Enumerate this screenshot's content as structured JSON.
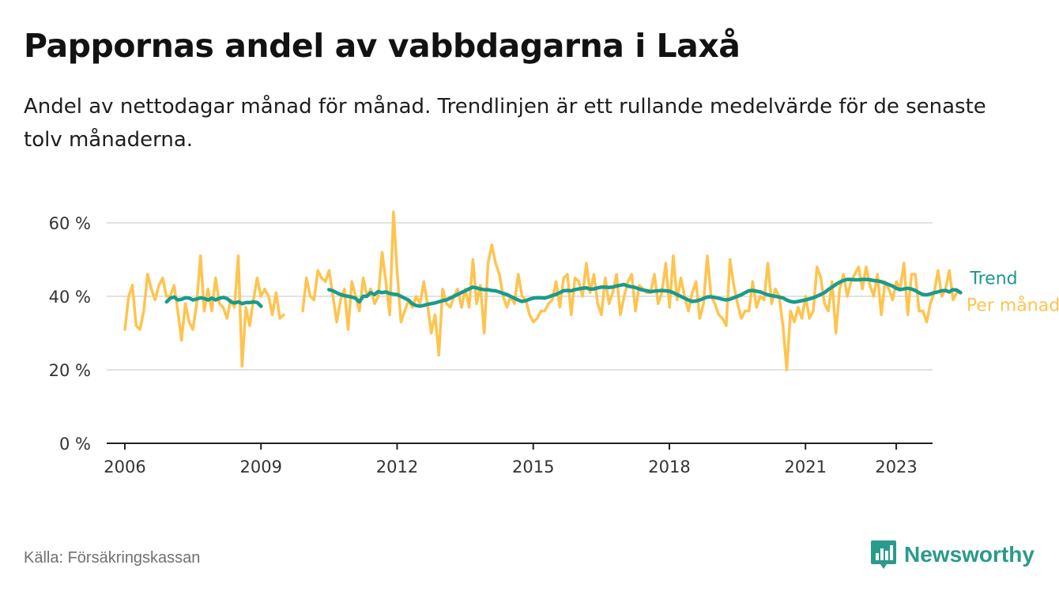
{
  "title": "Pappornas andel av vabbdagarna i Laxå",
  "subtitle": "Andel av nettodagar månad för månad. Trendlinjen är ett rullande medelvärde för de senaste tolv månaderna.",
  "source": "Källa: Försäkringskassan",
  "brand": {
    "name": "Newsworthy",
    "icon": "newsworthy-logo-icon"
  },
  "colors": {
    "monthly": "#fec44f",
    "trend": "#1a9a8c",
    "grid": "#d9d9d9",
    "axis": "#222222"
  },
  "chart_data": {
    "type": "line",
    "x_unit": "year",
    "ylim": [
      0,
      60
    ],
    "xlim": [
      2005.6,
      2023.8
    ],
    "y_ticks": [
      0,
      20,
      40,
      60
    ],
    "y_tick_labels": [
      "0 %",
      "20 %",
      "40 %",
      "60 %"
    ],
    "x_ticks": [
      2006,
      2009,
      2012,
      2015,
      2018,
      2021,
      2023
    ],
    "x_tick_labels": [
      "2006",
      "2009",
      "2012",
      "2015",
      "2018",
      "2021",
      "2023"
    ],
    "grid": true,
    "legend": "direct labels at line ends (right)",
    "series": [
      {
        "name": "Per månad",
        "color": "#fec44f",
        "segments": [
          {
            "x_start": 2006.0,
            "y": [
              31,
              40,
              43,
              32,
              31,
              36,
              46,
              42,
              39,
              43,
              45,
              40,
              40,
              43,
              36,
              28,
              38,
              33,
              31,
              38,
              51,
              36,
              42,
              36,
              45,
              38,
              37,
              34,
              39,
              37,
              51,
              21,
              37,
              32,
              39,
              45,
              40,
              42,
              40,
              35,
              41,
              34,
              35
            ]
          },
          {
            "x_start": 2009.92,
            "y": [
              36,
              45,
              40,
              39,
              47,
              45,
              44,
              47,
              40,
              33,
              39,
              42,
              31,
              44,
              40,
              36,
              45,
              40,
              42,
              38,
              40,
              52,
              44,
              35,
              63,
              46,
              33,
              36,
              39,
              37,
              40,
              38,
              44,
              38,
              30,
              35,
              24,
              42,
              38,
              37,
              40,
              42,
              37,
              42,
              37,
              50,
              38,
              43,
              30,
              49,
              54,
              49,
              46,
              40,
              37,
              40,
              38,
              46,
              40,
              39,
              35,
              33,
              34,
              36,
              36,
              38,
              39,
              44,
              37,
              45,
              46,
              35,
              45,
              44,
              40,
              49,
              41,
              46,
              38,
              35,
              45,
              38,
              41,
              46,
              35,
              40,
              44,
              46,
              36,
              43,
              42,
              41,
              41,
              46,
              38,
              41,
              49,
              37,
              51,
              39,
              45,
              40,
              36,
              41,
              44,
              34,
              38,
              51,
              40,
              38,
              35,
              34,
              32,
              50,
              43,
              38,
              34,
              36,
              36,
              44,
              37,
              40,
              39,
              49,
              38,
              42,
              40,
              32,
              20,
              36,
              33,
              37,
              34,
              40,
              34,
              36,
              48,
              45,
              38,
              36,
              44,
              30,
              42,
              46,
              40,
              44,
              46,
              48,
              42,
              48,
              43,
              40,
              46,
              35,
              44,
              42,
              39,
              44,
              42,
              49,
              35,
              46,
              46,
              36,
              36,
              33,
              38,
              41,
              47,
              40,
              42,
              47,
              39,
              41
            ]
          }
        ]
      },
      {
        "name": "Trend",
        "color": "#1a9a8c",
        "segments": [
          {
            "x_start": 2006.92,
            "y": [
              38.5,
              39.5,
              39.8,
              39.0,
              39.2,
              39.6,
              39.5,
              39.0,
              39.3,
              39.6,
              39.4,
              39.0,
              39.5,
              39.0,
              39.5,
              39.7,
              39.4,
              38.5,
              38.2,
              38.5,
              38.0,
              38.3,
              38.3,
              38.5,
              38.3,
              37.3
            ]
          },
          {
            "x_start": 2010.5,
            "y": [
              41.8,
              41.5,
              41.0,
              40.5,
              40.2,
              40.0,
              39.8,
              39.5,
              38.5,
              40.0,
              40.0,
              41.0,
              40.5,
              41.3,
              41.0,
              41.2,
              40.8,
              40.6,
              40.5,
              40.0,
              39.5,
              39.0,
              38.0,
              37.5,
              37.3,
              37.5,
              37.8,
              38.0,
              38.2,
              38.5,
              38.8,
              39.0,
              39.5,
              40.0,
              40.5,
              41.0,
              41.5,
              42.0,
              42.5,
              42.3,
              42.0,
              41.8,
              41.8,
              41.6,
              41.5,
              41.2,
              40.8,
              40.5,
              40.0,
              39.5,
              39.0,
              38.6,
              38.8,
              39.2,
              39.5,
              39.6,
              39.6,
              39.5,
              39.8,
              40.2,
              40.5,
              41.0,
              41.5,
              41.6,
              41.5,
              41.8,
              42.0,
              42.2,
              42.3,
              42.0,
              42.0,
              42.3,
              42.5,
              42.5,
              42.4,
              42.5,
              42.8,
              43.0,
              43.2,
              42.8,
              42.6,
              42.4,
              42.0,
              41.7,
              41.5,
              41.3,
              41.4,
              41.5,
              41.6,
              41.5,
              41.4,
              41.0,
              40.5,
              40.0,
              39.5,
              39.0,
              38.6,
              38.7,
              39.0,
              39.4,
              39.8,
              39.9,
              39.7,
              39.5,
              39.2,
              39.0,
              39.2,
              39.6,
              40.0,
              40.4,
              41.0,
              41.5,
              41.6,
              41.4,
              41.2,
              40.8,
              40.4,
              40.2,
              40.0,
              39.8,
              39.6,
              39.0,
              38.6,
              38.4,
              38.6,
              38.8,
              39.0,
              39.3,
              39.6,
              40.0,
              40.5,
              41.0,
              41.8,
              42.5,
              43.2,
              43.8,
              44.3,
              44.6,
              44.6,
              44.5,
              44.5,
              44.6,
              44.6,
              44.5,
              44.3,
              44.2,
              44.0,
              43.6,
              43.2,
              42.8,
              42.2,
              41.8,
              42.0,
              42.2,
              42.0,
              41.6,
              41.0,
              40.5,
              40.4,
              40.6,
              41.0,
              41.2,
              41.5,
              41.6,
              41.2,
              41.8,
              41.7,
              41.0
            ]
          }
        ]
      }
    ]
  }
}
